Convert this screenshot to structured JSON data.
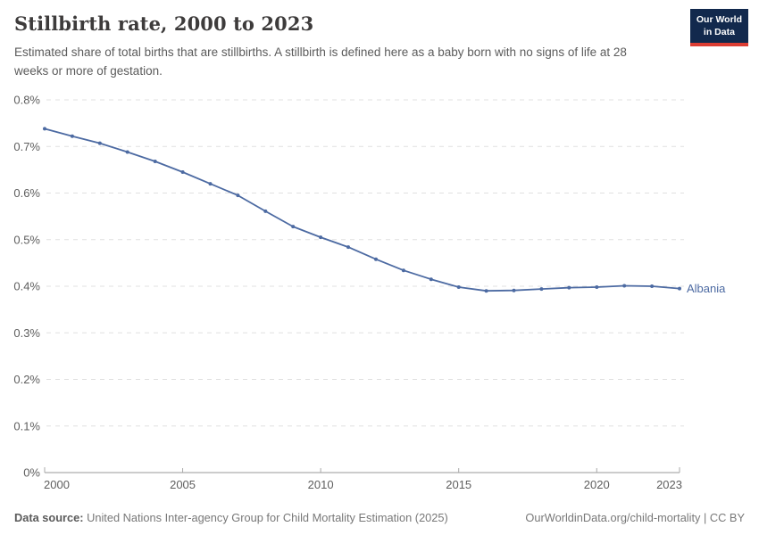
{
  "header": {
    "title": "Stillbirth rate, 2000 to 2023",
    "subtitle": "Estimated share of total births that are stillbirths. A stillbirth is defined here as a baby born with no signs of life at 28 weeks or more of gestation.",
    "logo": {
      "line1": "Our World",
      "line2": "in Data",
      "bg_color": "#12294d",
      "accent_color": "#dc3d33"
    }
  },
  "chart_data": {
    "type": "line",
    "title": "Stillbirth rate, 2000 to 2023",
    "xlabel": "",
    "ylabel": "",
    "xlim": [
      2000,
      2023
    ],
    "ylim": [
      0,
      0.8
    ],
    "grid": "horizontal-dashed",
    "legend_position": "end-of-line-label",
    "xticks": [
      2000,
      2005,
      2010,
      2015,
      2020,
      2023
    ],
    "yticks": [
      {
        "value": 0.0,
        "label": "0%"
      },
      {
        "value": 0.1,
        "label": "0.1%"
      },
      {
        "value": 0.2,
        "label": "0.2%"
      },
      {
        "value": 0.3,
        "label": "0.3%"
      },
      {
        "value": 0.4,
        "label": "0.4%"
      },
      {
        "value": 0.5,
        "label": "0.5%"
      },
      {
        "value": 0.6,
        "label": "0.6%"
      },
      {
        "value": 0.7,
        "label": "0.7%"
      },
      {
        "value": 0.8,
        "label": "0.8%"
      }
    ],
    "series": [
      {
        "name": "Albania",
        "color": "#4c6aa2",
        "x": [
          2000,
          2001,
          2002,
          2003,
          2004,
          2005,
          2006,
          2007,
          2008,
          2009,
          2010,
          2011,
          2012,
          2013,
          2014,
          2015,
          2016,
          2017,
          2018,
          2019,
          2020,
          2021,
          2022,
          2023
        ],
        "y": [
          0.738,
          0.722,
          0.707,
          0.688,
          0.668,
          0.645,
          0.62,
          0.595,
          0.561,
          0.528,
          0.505,
          0.484,
          0.458,
          0.434,
          0.415,
          0.398,
          0.39,
          0.391,
          0.394,
          0.397,
          0.398,
          0.401,
          0.4,
          0.395
        ]
      }
    ]
  },
  "footer": {
    "datasource_label": "Data source:",
    "datasource_text": "United Nations Inter-agency Group for Child Mortality Estimation (2025)",
    "link_text": "OurWorldinData.org/child-mortality | CC BY"
  }
}
